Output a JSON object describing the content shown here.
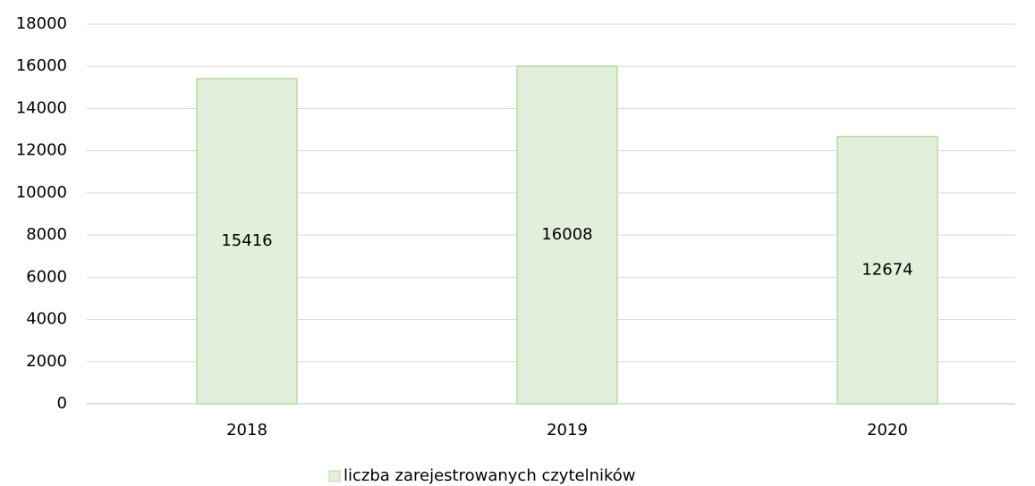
{
  "chart_data": {
    "type": "bar",
    "categories": [
      "2018",
      "2019",
      "2020"
    ],
    "series": [
      {
        "name": "liczba zarejestrowanych czytelników",
        "color": "#e2efda",
        "values": [
          15416,
          16008,
          12674
        ]
      }
    ],
    "ylim": [
      0,
      18000
    ],
    "yticks": [
      0,
      2000,
      4000,
      6000,
      8000,
      10000,
      12000,
      14000,
      16000,
      18000
    ],
    "grid": true,
    "legend": "bottom",
    "data_labels": true
  }
}
